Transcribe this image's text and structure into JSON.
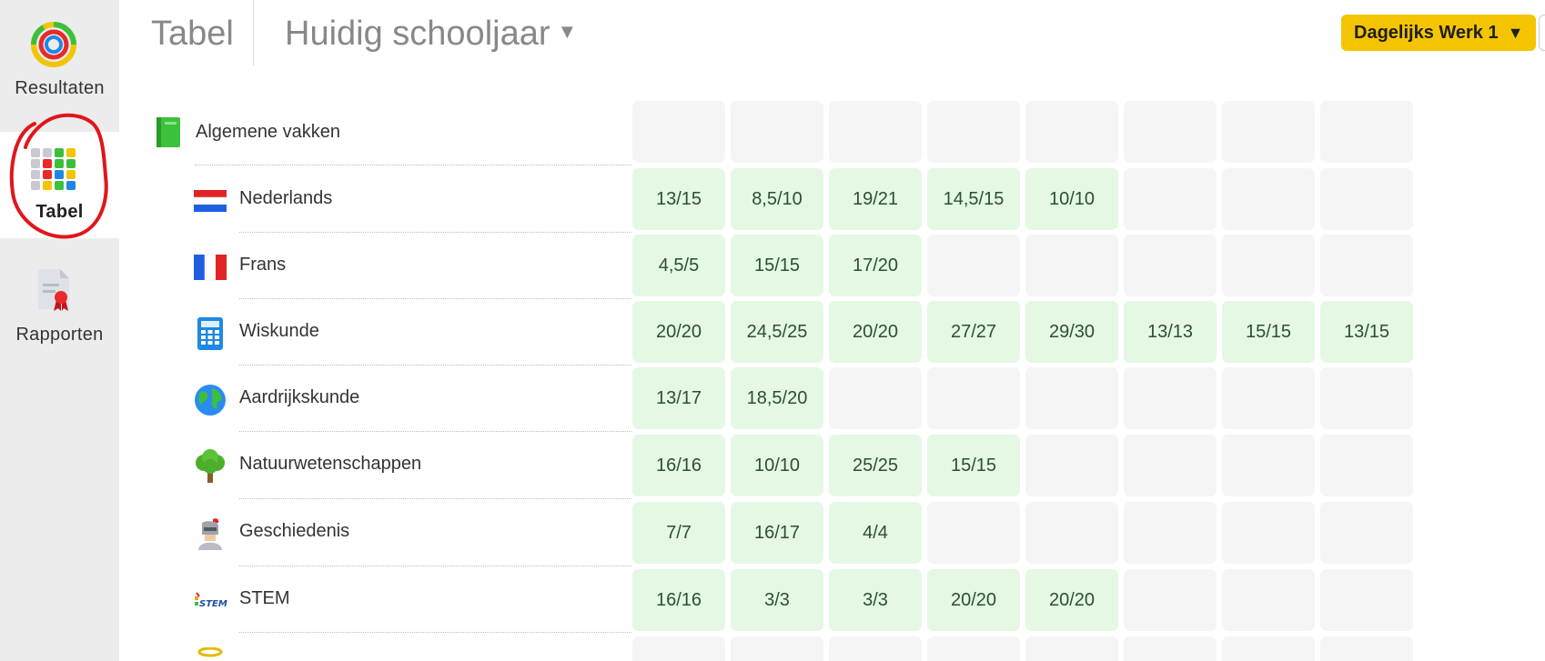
{
  "sidebar": {
    "items": [
      {
        "label": "Resultaten",
        "icon": "results-ring-icon"
      },
      {
        "label": "Tabel",
        "icon": "table-grid-icon"
      },
      {
        "label": "Rapporten",
        "icon": "report-certificate-icon"
      }
    ]
  },
  "header": {
    "title": "Tabel",
    "year_selector": "Huidig schooljaar",
    "period_button": "Dagelijks Werk 1"
  },
  "category": {
    "name": "Algemene vakken",
    "icon": "green-book-icon"
  },
  "subjects": [
    {
      "name": "Nederlands",
      "icon": "dutch-flag-icon",
      "scores": [
        "13/15",
        "8,5/10",
        "19/21",
        "14,5/15",
        "10/10",
        "",
        "",
        ""
      ]
    },
    {
      "name": "Frans",
      "icon": "french-flag-icon",
      "scores": [
        "4,5/5",
        "15/15",
        "17/20",
        "",
        "",
        "",
        "",
        ""
      ]
    },
    {
      "name": "Wiskunde",
      "icon": "calculator-icon",
      "scores": [
        "20/20",
        "24,5/25",
        "20/20",
        "27/27",
        "29/30",
        "13/13",
        "15/15",
        "13/15"
      ]
    },
    {
      "name": "Aardrijkskunde",
      "icon": "globe-icon",
      "scores": [
        "13/17",
        "18,5/20",
        "",
        "",
        "",
        "",
        "",
        ""
      ]
    },
    {
      "name": "Natuurwetenschappen",
      "icon": "tree-icon",
      "scores": [
        "16/16",
        "10/10",
        "25/25",
        "15/15",
        "",
        "",
        "",
        ""
      ]
    },
    {
      "name": "Geschiedenis",
      "icon": "knight-icon",
      "scores": [
        "7/7",
        "16/17",
        "4/4",
        "",
        "",
        "",
        "",
        ""
      ]
    },
    {
      "name": "STEM",
      "icon": "stem-logo-icon",
      "scores": [
        "16/16",
        "3/3",
        "3/3",
        "20/20",
        "20/20",
        "",
        "",
        ""
      ]
    }
  ],
  "colors": {
    "accent_yellow": "#f5c400",
    "filled_cell": "#e4f8e4",
    "empty_cell": "#f5f5f5",
    "annotation_red": "#e0161b"
  }
}
